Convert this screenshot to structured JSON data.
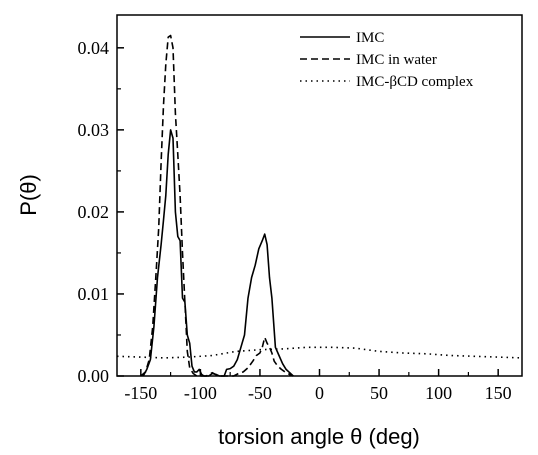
{
  "chart_data": {
    "type": "line",
    "xlabel": "torsion angle θ (deg)",
    "ylabel": "P(θ)",
    "xlim": [
      -170,
      170
    ],
    "ylim": [
      0,
      0.044
    ],
    "xticks": [
      -150,
      -100,
      -50,
      0,
      50,
      100,
      150
    ],
    "xtick_labels": [
      "-150",
      "-100",
      "-50",
      "0",
      "50",
      "100",
      "150"
    ],
    "yticks": [
      0,
      0.01,
      0.02,
      0.03,
      0.04
    ],
    "ytick_labels": [
      "0.00",
      "0.01",
      "0.02",
      "0.03",
      "0.04"
    ],
    "grid": false,
    "legend_position": "top-right",
    "series": [
      {
        "name": "IMC",
        "style": "solid",
        "color": "#000000",
        "points": [
          [
            -148,
            0
          ],
          [
            -145,
            0.0008
          ],
          [
            -142,
            0.002
          ],
          [
            -139,
            0.006
          ],
          [
            -136,
            0.012
          ],
          [
            -133,
            0.016
          ],
          [
            -131,
            0.019
          ],
          [
            -129,
            0.022
          ],
          [
            -127,
            0.027
          ],
          [
            -125,
            0.03
          ],
          [
            -123,
            0.029
          ],
          [
            -121,
            0.02
          ],
          [
            -119,
            0.017
          ],
          [
            -117,
            0.0165
          ],
          [
            -115,
            0.0095
          ],
          [
            -113,
            0.009
          ],
          [
            -111,
            0.005
          ],
          [
            -109,
            0.004
          ],
          [
            -107,
            0.0012
          ],
          [
            -105,
            0.0005
          ],
          [
            -103,
            0.0005
          ],
          [
            -101,
            0.0008
          ],
          [
            -99,
            0.0002
          ],
          [
            -97,
            0
          ],
          [
            -93,
            0
          ],
          [
            -90,
            0.0003
          ],
          [
            -87,
            0.0002
          ],
          [
            -84,
            0
          ],
          [
            -80,
            0
          ],
          [
            -78,
            0.0008
          ],
          [
            -75,
            0.0009
          ],
          [
            -72,
            0.0012
          ],
          [
            -69,
            0.002
          ],
          [
            -66,
            0.0035
          ],
          [
            -63,
            0.005
          ],
          [
            -60,
            0.0095
          ],
          [
            -57,
            0.012
          ],
          [
            -54,
            0.0135
          ],
          [
            -51,
            0.0155
          ],
          [
            -48,
            0.0165
          ],
          [
            -46,
            0.0173
          ],
          [
            -44,
            0.016
          ],
          [
            -42,
            0.012
          ],
          [
            -40,
            0.0095
          ],
          [
            -37,
            0.0035
          ],
          [
            -34,
            0.0025
          ],
          [
            -31,
            0.0015
          ],
          [
            -28,
            0.0008
          ],
          [
            -25,
            0.0004
          ],
          [
            -22,
            0
          ]
        ]
      },
      {
        "name": "IMC in water",
        "style": "dashed",
        "color": "#000000",
        "points": [
          [
            -150,
            0
          ],
          [
            -146,
            0.0005
          ],
          [
            -143,
            0.002
          ],
          [
            -140,
            0.006
          ],
          [
            -137,
            0.013
          ],
          [
            -135,
            0.018
          ],
          [
            -133,
            0.026
          ],
          [
            -131,
            0.033
          ],
          [
            -129,
            0.038
          ],
          [
            -127,
            0.0413
          ],
          [
            -125,
            0.0415
          ],
          [
            -123,
            0.04
          ],
          [
            -121,
            0.032
          ],
          [
            -119,
            0.027
          ],
          [
            -117,
            0.022
          ],
          [
            -115,
            0.015
          ],
          [
            -113,
            0.009
          ],
          [
            -111,
            0.003
          ],
          [
            -109,
            0.001
          ],
          [
            -106,
            0.0003
          ],
          [
            -103,
            0
          ],
          [
            -95,
            0
          ],
          [
            -90,
            0.0004
          ],
          [
            -85,
            0
          ],
          [
            -72,
            0
          ],
          [
            -68,
            0.0003
          ],
          [
            -64,
            0.0005
          ],
          [
            -60,
            0.001
          ],
          [
            -56,
            0.0018
          ],
          [
            -53,
            0.0025
          ],
          [
            -50,
            0.0028
          ],
          [
            -48,
            0.0035
          ],
          [
            -46,
            0.0047
          ],
          [
            -44,
            0.004
          ],
          [
            -42,
            0.0035
          ],
          [
            -40,
            0.0028
          ],
          [
            -38,
            0.0018
          ],
          [
            -35,
            0.0012
          ],
          [
            -32,
            0.0008
          ],
          [
            -28,
            0.0004
          ],
          [
            -25,
            0.0002
          ],
          [
            -22,
            0
          ]
        ]
      },
      {
        "name": "IMC-βCD complex",
        "style": "dotted",
        "color": "#000000",
        "points": [
          [
            -170,
            0.0024
          ],
          [
            -150,
            0.0023
          ],
          [
            -130,
            0.0022
          ],
          [
            -110,
            0.0023
          ],
          [
            -90,
            0.0025
          ],
          [
            -70,
            0.003
          ],
          [
            -50,
            0.0032
          ],
          [
            -30,
            0.0033
          ],
          [
            -10,
            0.0035
          ],
          [
            10,
            0.0035
          ],
          [
            30,
            0.0034
          ],
          [
            50,
            0.003
          ],
          [
            70,
            0.0028
          ],
          [
            90,
            0.0027
          ],
          [
            110,
            0.0025
          ],
          [
            130,
            0.0024
          ],
          [
            150,
            0.0023
          ],
          [
            170,
            0.0022
          ]
        ]
      }
    ]
  }
}
